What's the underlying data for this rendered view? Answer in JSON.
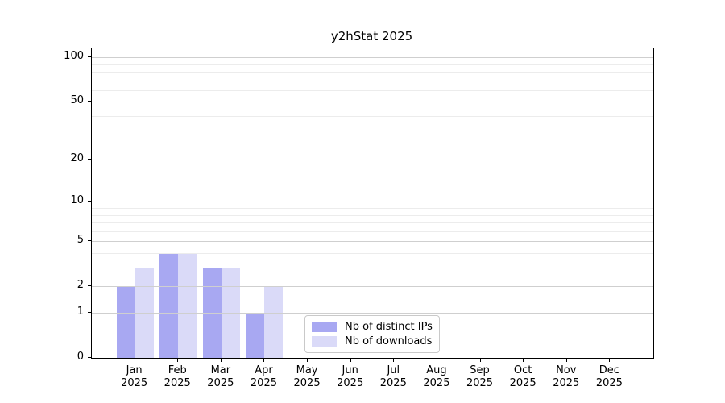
{
  "chart_data": {
    "type": "bar",
    "title": "y2hStat 2025",
    "x_tick_year": "2025",
    "categories": [
      "Jan",
      "Feb",
      "Mar",
      "Apr",
      "May",
      "Jun",
      "Jul",
      "Aug",
      "Sep",
      "Oct",
      "Nov",
      "Dec"
    ],
    "series": [
      {
        "name": "Nb of distinct IPs",
        "color": "#a8a8f2",
        "values": [
          2,
          4,
          3,
          1,
          0,
          0,
          0,
          0,
          0,
          0,
          0,
          0
        ]
      },
      {
        "name": "Nb of downloads",
        "color": "#dadaf8",
        "values": [
          3,
          4,
          3,
          2,
          0,
          0,
          0,
          0,
          0,
          0,
          0,
          0
        ]
      }
    ],
    "y_axis": {
      "scale": "log1p",
      "major_ticks": [
        0,
        1,
        2,
        5,
        10,
        20,
        50,
        100
      ],
      "minor_gridlines": [
        3,
        4,
        6,
        7,
        8,
        9,
        30,
        40,
        60,
        70,
        80,
        90
      ],
      "top_value": 115
    },
    "grid": {
      "major_color": "#cfcfcf",
      "minor_color": "#ececec",
      "enabled": true
    },
    "legend": {
      "position": "inside-bottom-center",
      "entries": [
        "Nb of distinct IPs",
        "Nb of downloads"
      ]
    }
  }
}
